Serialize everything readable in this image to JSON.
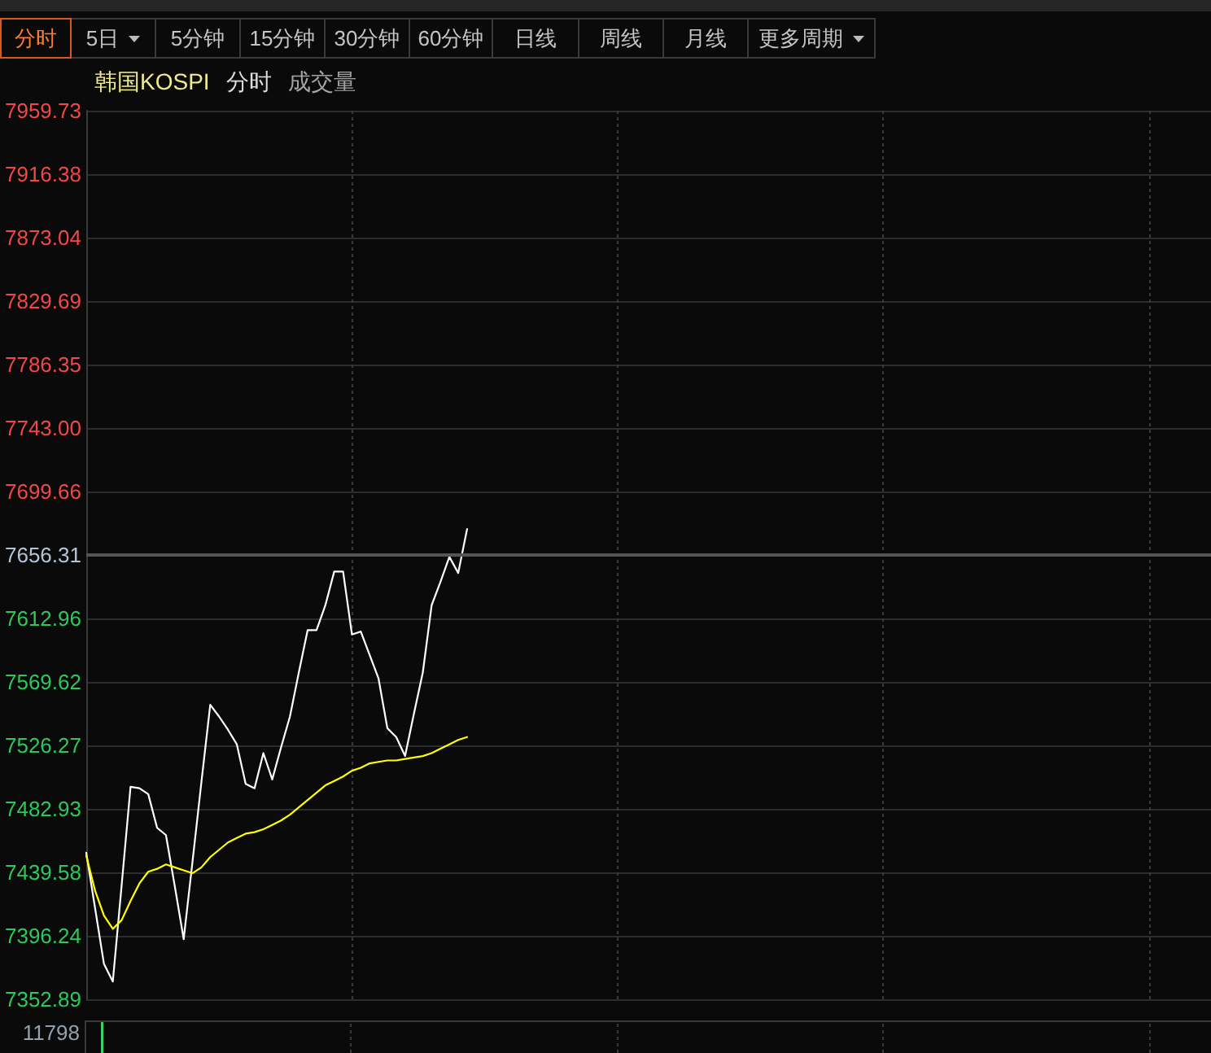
{
  "chart_data": {
    "type": "line",
    "title": "韩国KOSPI",
    "subtitle": "分时",
    "annotations": [
      "分时",
      "5日",
      "5分钟",
      "15分钟",
      "30分钟",
      "60分钟",
      "日线",
      "周线",
      "月线",
      "更多周期",
      "成交量",
      "11798"
    ],
    "categories": [
      null,
      null,
      null,
      null,
      null,
      null,
      null,
      null,
      null,
      null,
      null,
      null,
      null,
      null,
      null,
      null,
      null,
      null,
      null,
      null,
      null,
      null,
      null,
      null,
      null,
      null,
      null,
      null,
      null,
      null,
      null,
      null,
      null,
      null,
      null,
      null,
      null,
      null,
      null,
      null,
      null,
      null,
      null,
      null,
      null,
      null,
      null,
      null,
      null,
      null,
      null,
      null,
      null,
      null,
      null,
      null,
      null,
      null,
      null,
      null,
      null,
      null,
      null,
      null,
      null,
      null,
      null,
      null,
      null,
      null,
      null,
      null,
      null,
      null,
      null,
      null,
      null,
      null,
      null,
      null,
      null,
      null,
      null,
      null,
      null,
      null,
      null,
      null,
      null,
      null,
      null,
      null,
      null,
      null,
      null,
      null,
      null,
      null,
      null,
      null,
      null,
      null,
      null,
      null,
      null,
      null,
      null,
      null,
      null,
      null,
      null,
      null,
      null,
      null,
      null,
      null,
      null,
      null,
      null,
      null,
      null,
      null,
      null,
      null,
      null,
      null,
      null,
      null
    ],
    "series": [
      {
        "color": "#ffffff",
        "values": [
          7453,
          7415,
          7377,
          7365,
          7431,
          7498,
          7497,
          7493,
          7470,
          7465,
          7430,
          7394,
          7447,
          7501,
          7554,
          7546,
          7537,
          7527,
          7500,
          7497,
          7521,
          7503,
          7525,
          7546,
          7576,
          7605,
          7605,
          7622,
          7645,
          7645,
          7602,
          7604,
          7588,
          7572,
          7538,
          7532,
          7519,
          7548,
          7576,
          7622,
          7638,
          7655,
          7644,
          7674,
          null,
          null,
          null,
          null,
          null,
          null,
          null,
          null,
          null,
          null,
          null,
          null,
          null,
          null,
          null,
          null,
          null,
          null,
          null,
          null,
          null,
          null,
          null,
          null,
          null,
          null,
          null,
          null,
          null,
          null,
          null,
          null,
          null,
          null,
          null,
          null,
          null,
          null,
          null,
          null,
          null,
          null,
          null,
          null,
          null,
          null,
          null,
          null,
          null,
          null,
          null,
          null,
          null,
          null,
          null,
          null,
          null,
          null,
          null,
          null,
          null,
          null,
          null,
          null,
          null,
          null,
          null,
          null,
          null,
          null,
          null,
          null,
          null,
          null,
          null,
          null,
          null,
          null,
          null,
          null,
          null,
          null,
          null,
          null
        ]
      },
      {
        "color": "#ffff00",
        "values": [
          7451,
          7427,
          7410,
          7401,
          7407,
          7420,
          7432,
          7440,
          7442,
          7445,
          7443,
          7441,
          7439,
          7443,
          7450,
          7455,
          7460,
          7463,
          7466,
          7467,
          7469,
          7472,
          7475,
          7479,
          7484,
          7489,
          7494,
          7499,
          7502,
          7505,
          7509,
          7511,
          7514,
          7515,
          7516,
          7516,
          7517,
          7518,
          7519,
          7521,
          7524,
          7527,
          7530,
          7532,
          null,
          null,
          null,
          null,
          null,
          null,
          null,
          null,
          null,
          null,
          null,
          null,
          null,
          null,
          null,
          null,
          null,
          null,
          null,
          null,
          null,
          null,
          null,
          null,
          null,
          null,
          null,
          null,
          null,
          null,
          null,
          null,
          null,
          null,
          null,
          null,
          null,
          null,
          null,
          null,
          null,
          null,
          null,
          null,
          null,
          null,
          null,
          null,
          null,
          null,
          null,
          null,
          null,
          null,
          null,
          null,
          null,
          null,
          null,
          null,
          null,
          null,
          null,
          null,
          null,
          null,
          null,
          null,
          null,
          null,
          null,
          null,
          null,
          null,
          null,
          null,
          null,
          null,
          null,
          null,
          null,
          null,
          null,
          null
        ]
      }
    ],
    "ylim": [
      7352.89,
      7959.73
    ],
    "yticks": [
      7352.89,
      7396.24,
      7439.58,
      7482.93,
      7526.27,
      7569.62,
      7612.96,
      7656.31,
      7699.66,
      {
        "value": 7743,
        "label": "7743.00"
      },
      7786.35,
      7829.69,
      7873.04,
      7916.38,
      7959.73
    ],
    "ref_lines": [
      {
        "axis": "y",
        "value": 7656.31,
        "color": "#555555"
      }
    ],
    "grid": true,
    "marker": "none",
    "line_style": "solid",
    "tick_labels": "y"
  }
}
